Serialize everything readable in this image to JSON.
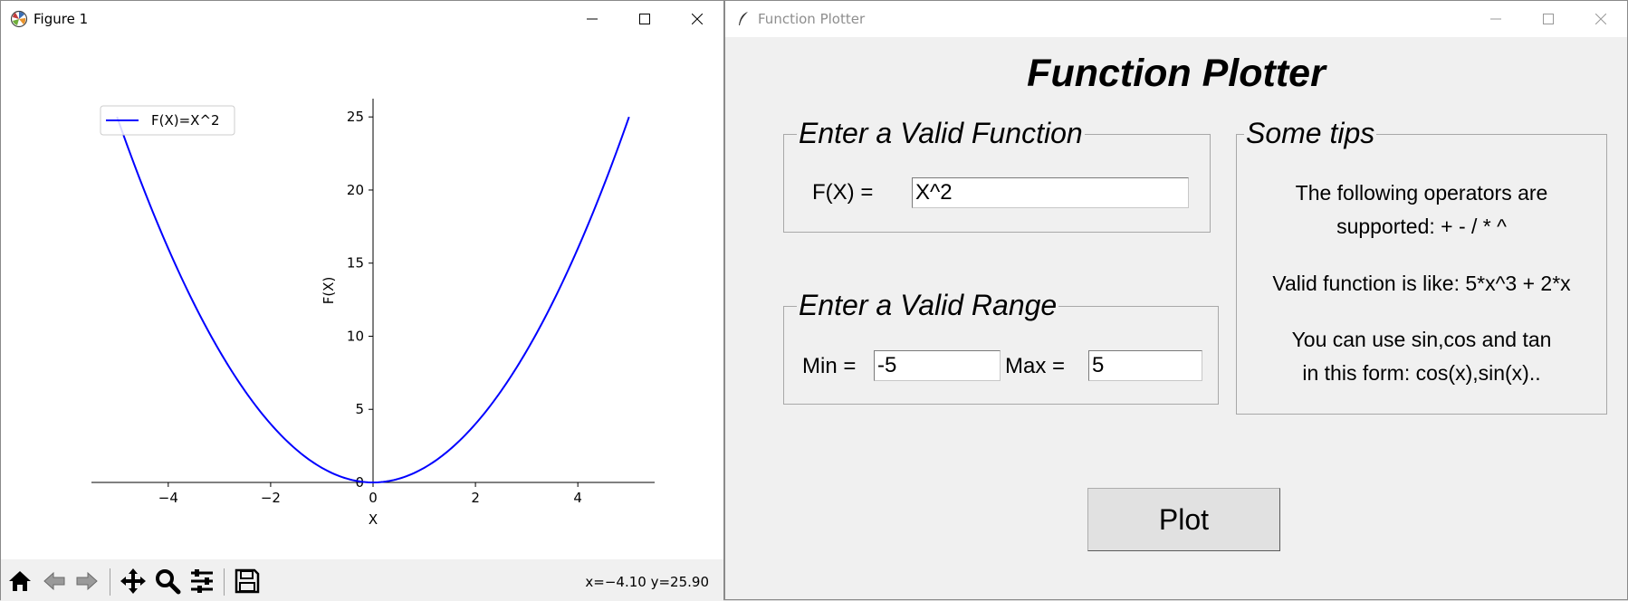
{
  "figure_window": {
    "title": "Figure 1",
    "toolbar": {
      "buttons": [
        "home-icon",
        "back-arrow-icon",
        "forward-arrow-icon",
        "pan-icon",
        "zoom-icon",
        "configure-subplots-icon",
        "save-icon"
      ],
      "coordinate_readout": "x=−4.10 y=25.90"
    }
  },
  "chart_data": {
    "type": "line",
    "series": [
      {
        "name": "F(X)=X^2",
        "function": "x^2",
        "x_range": [
          -5,
          5
        ],
        "color": "#0000ff"
      }
    ],
    "xlabel": "X",
    "ylabel": "F(X)",
    "xlim": [
      -5.5,
      5.5
    ],
    "ylim": [
      0,
      26.25
    ],
    "x_ticks": [
      "−4",
      "−2",
      "0",
      "2",
      "4"
    ],
    "x_tick_values": [
      -4,
      -2,
      0,
      2,
      4
    ],
    "y_ticks": [
      "0",
      "5",
      "10",
      "15",
      "20",
      "25"
    ],
    "y_tick_values": [
      0,
      5,
      10,
      15,
      20,
      25
    ],
    "spines": "centered at origin",
    "grid": false,
    "legend_placement": "upper-left"
  },
  "plotter_window": {
    "title": "Function Plotter",
    "heading": "Function Plotter",
    "function_frame": {
      "legend": "Enter a Valid Function",
      "label": "F(X) =",
      "value": "X^2"
    },
    "range_frame": {
      "legend": "Enter a Valid Range",
      "min_label": "Min =",
      "min_value": "-5",
      "max_label": "Max =",
      "max_value": "5"
    },
    "tips_frame": {
      "legend": "Some tips",
      "line1": "The following operators are",
      "line2": "supported:  + - / * ^",
      "line3": "Valid function is like: 5*x^3 + 2*x",
      "line4": "You can use sin,cos and tan",
      "line5": "in this form: cos(x),sin(x).."
    },
    "plot_button": "Plot"
  }
}
